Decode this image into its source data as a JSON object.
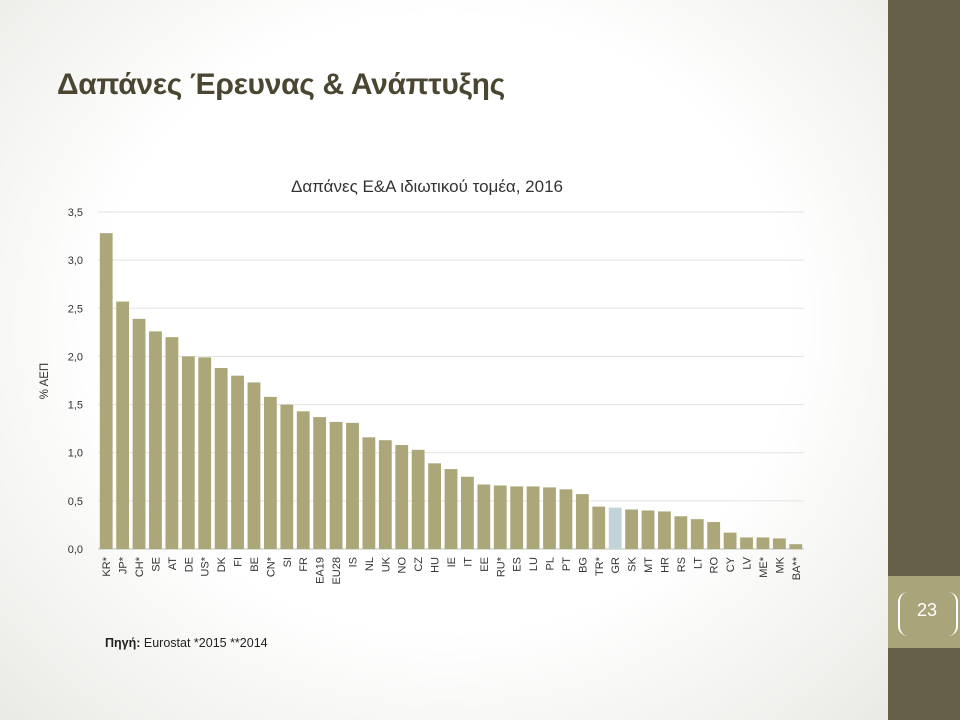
{
  "slide": {
    "title": "Δαπάνες Έρευνας & Ανάπτυξης",
    "page_number": "23",
    "source_label": "Πηγή:",
    "source_text": " Eurostat  *2015 **2014"
  },
  "colors": {
    "bar": "#aca779",
    "highlight": "#c2d3d9",
    "sidebar": "#666048",
    "tab": "#a9a47a",
    "title": "#4a4632"
  },
  "chart_data": {
    "type": "bar",
    "title": "Δαπάνες Ε&Α ιδιωτικού τομέα, 2016",
    "xlabel": "",
    "ylabel": "% ΑΕΠ",
    "ylim": [
      0,
      3.5
    ],
    "yticks": [
      "0,0",
      "0,5",
      "1,0",
      "1,5",
      "2,0",
      "2,5",
      "3,0",
      "3,5"
    ],
    "ytick_values": [
      0,
      0.5,
      1.0,
      1.5,
      2.0,
      2.5,
      3.0,
      3.5
    ],
    "grid": true,
    "highlight_category": "GR",
    "categories": [
      "KR*",
      "JP*",
      "CH*",
      "SE",
      "AT",
      "DE",
      "US*",
      "DK",
      "FI",
      "BE",
      "CN*",
      "SI",
      "FR",
      "EA19",
      "EU28",
      "IS",
      "NL",
      "UK",
      "NO",
      "CZ",
      "HU",
      "IE",
      "IT",
      "EE",
      "RU*",
      "ES",
      "LU",
      "PL",
      "PT",
      "BG",
      "TR*",
      "GR",
      "SK",
      "MT",
      "HR",
      "RS",
      "LT",
      "RO",
      "CY",
      "LV",
      "ME*",
      "MK",
      "BA**"
    ],
    "values": [
      3.28,
      2.57,
      2.39,
      2.26,
      2.2,
      2.0,
      1.99,
      1.88,
      1.8,
      1.73,
      1.58,
      1.5,
      1.43,
      1.37,
      1.32,
      1.31,
      1.16,
      1.13,
      1.08,
      1.03,
      0.89,
      0.83,
      0.75,
      0.67,
      0.66,
      0.65,
      0.65,
      0.64,
      0.62,
      0.57,
      0.44,
      0.43,
      0.41,
      0.4,
      0.39,
      0.34,
      0.31,
      0.28,
      0.17,
      0.12,
      0.12,
      0.11,
      0.05
    ]
  }
}
